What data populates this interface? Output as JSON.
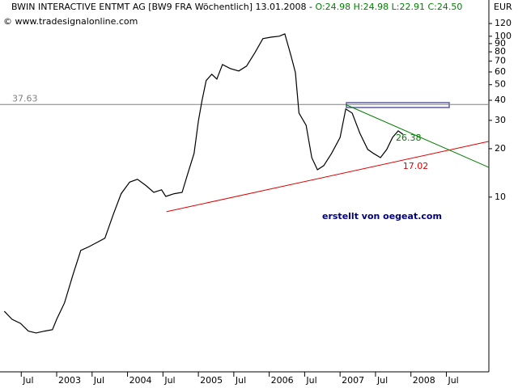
{
  "chart_data": {
    "type": "line",
    "header": {
      "title": "BWIN INTERACTIVE ENTMT AG [BW9 FRA  Wöchentlich] 13.01.2008 -",
      "ohl": "O:24.98 H:24.98 L:22.91",
      "close": "C:24.50"
    },
    "source": "© www.tradesignalonline.com",
    "y_unit": "EUR",
    "annotation": "erstellt von oegeat.com",
    "log_scale": true,
    "xlim": [
      2002.2,
      2009.1
    ],
    "ylim": [
      0.82,
      168
    ],
    "xticks": [
      {
        "value": 2002.5,
        "label": "Jul"
      },
      2003,
      {
        "value": 2003.5,
        "label": "Jul"
      },
      2004,
      {
        "value": 2004.5,
        "label": "Jul"
      },
      2005,
      {
        "value": 2005.5,
        "label": "Jul"
      },
      2006,
      {
        "value": 2006.5,
        "label": "Jul"
      },
      2007,
      {
        "value": 2007.5,
        "label": "Jul"
      },
      2008,
      {
        "value": 2008.5,
        "label": "Jul"
      }
    ],
    "yticks": [
      10,
      20,
      30,
      40,
      50,
      60,
      70,
      80,
      90,
      100,
      120
    ],
    "series": [
      {
        "name": "BWIN",
        "color": "#000000",
        "x": [
          2002.26,
          2002.37,
          2002.49,
          2002.6,
          2002.71,
          2002.83,
          2002.94,
          2003.0,
          2003.11,
          2003.23,
          2003.34,
          2003.46,
          2003.57,
          2003.68,
          2003.8,
          2003.91,
          2004.03,
          2004.14,
          2004.26,
          2004.37,
          2004.48,
          2004.54,
          2004.66,
          2004.77,
          2004.85,
          2004.94,
          2005.0,
          2005.05,
          2005.11,
          2005.19,
          2005.26,
          2005.34,
          2005.45,
          2005.57,
          2005.68,
          2005.8,
          2005.91,
          2006.03,
          2006.14,
          2006.22,
          2006.31,
          2006.37,
          2006.42,
          2006.52,
          2006.6,
          2006.68,
          2006.77,
          2006.88,
          2007.0,
          2007.08,
          2007.17,
          2007.28,
          2007.39,
          2007.47,
          2007.57,
          2007.66,
          2007.74,
          2007.82,
          2007.89
        ],
        "values": [
          1.95,
          1.74,
          1.64,
          1.47,
          1.43,
          1.47,
          1.5,
          1.74,
          2.2,
          3.3,
          4.66,
          4.93,
          5.23,
          5.55,
          7.84,
          10.5,
          12.4,
          12.9,
          11.8,
          10.7,
          11.1,
          10.1,
          10.5,
          10.7,
          14.0,
          18.7,
          29.7,
          39.6,
          53.0,
          58.0,
          54.2,
          66.7,
          63.0,
          60.8,
          65.2,
          79.3,
          96.6,
          98.8,
          100,
          103.5,
          74.8,
          59.4,
          33.3,
          28.0,
          17.6,
          14.8,
          15.7,
          18.7,
          23.5,
          35.3,
          33.3,
          24.9,
          19.8,
          18.7,
          17.6,
          19.8,
          23.5,
          25.8,
          24.5
        ]
      }
    ],
    "level": {
      "value": 37.63,
      "label": "37.63",
      "color": "#808080"
    },
    "trendlines": [
      {
        "label": "17.02",
        "color": "#e00000",
        "x": [
          2004.55,
          2009.1
        ],
        "values": [
          8.12,
          22.2
        ],
        "label_x": 2008.0
      },
      {
        "label": "26.38",
        "color": "#008000",
        "x": [
          2007.08,
          2009.1
        ],
        "values": [
          37.6,
          15.3
        ],
        "label_x": 2007.9
      }
    ]
  }
}
